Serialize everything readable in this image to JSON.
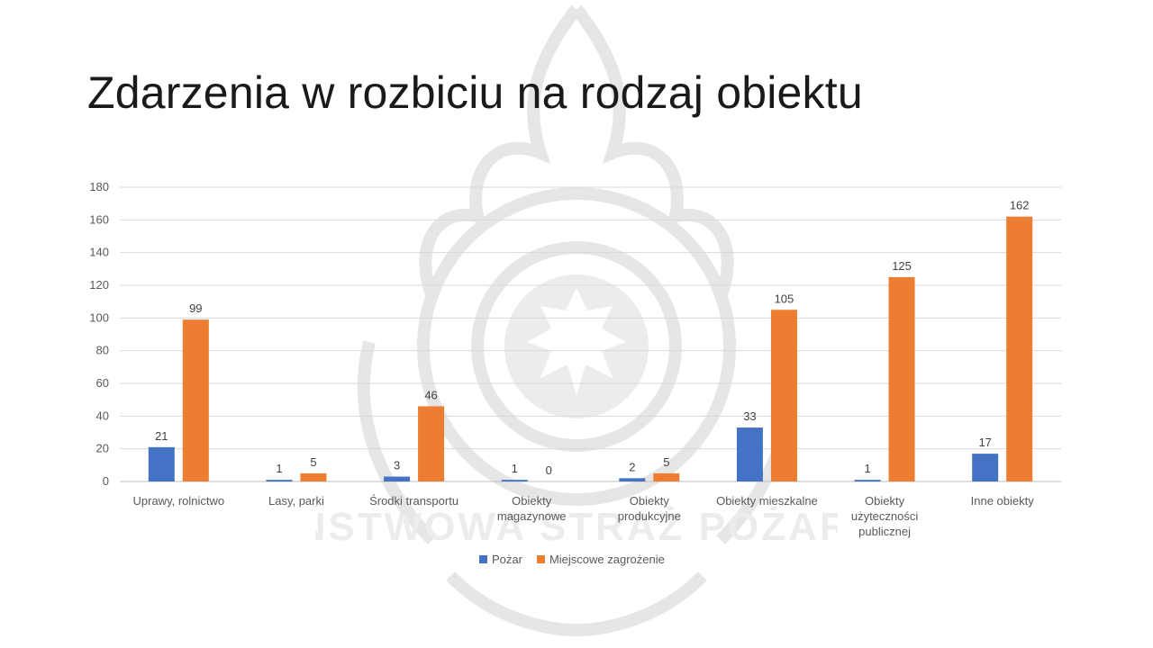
{
  "title": "Zdarzenia w rozbiciu na rodzaj obiektu",
  "watermark": {
    "icon": "fire-service-emblem-icon",
    "text": "PAŃSTWOWA STRAŻ POŻARNA"
  },
  "chart_data": {
    "type": "bar",
    "title": "",
    "xlabel": "",
    "ylabel": "",
    "ylim": [
      0,
      180
    ],
    "yticks": [
      0,
      20,
      40,
      60,
      80,
      100,
      120,
      140,
      160,
      180
    ],
    "grid": true,
    "legend_position": "bottom",
    "categories": [
      [
        "Uprawy, rolnictwo"
      ],
      [
        "Lasy, parki"
      ],
      [
        "Środki transportu"
      ],
      [
        "Obiekty",
        "magazynowe"
      ],
      [
        "Obiekty",
        "produkcyjne"
      ],
      [
        "Obiekty mieszkalne"
      ],
      [
        "Obiekty",
        "użyteczności",
        "publicznej"
      ],
      [
        "Inne obiekty"
      ]
    ],
    "series": [
      {
        "name": "Pożar",
        "color": "#4472C4",
        "values": [
          21,
          1,
          3,
          1,
          2,
          33,
          1,
          17
        ]
      },
      {
        "name": "Miejscowe zagrożenie",
        "color": "#ED7D31",
        "values": [
          99,
          5,
          46,
          0,
          5,
          105,
          125,
          162
        ]
      }
    ]
  }
}
